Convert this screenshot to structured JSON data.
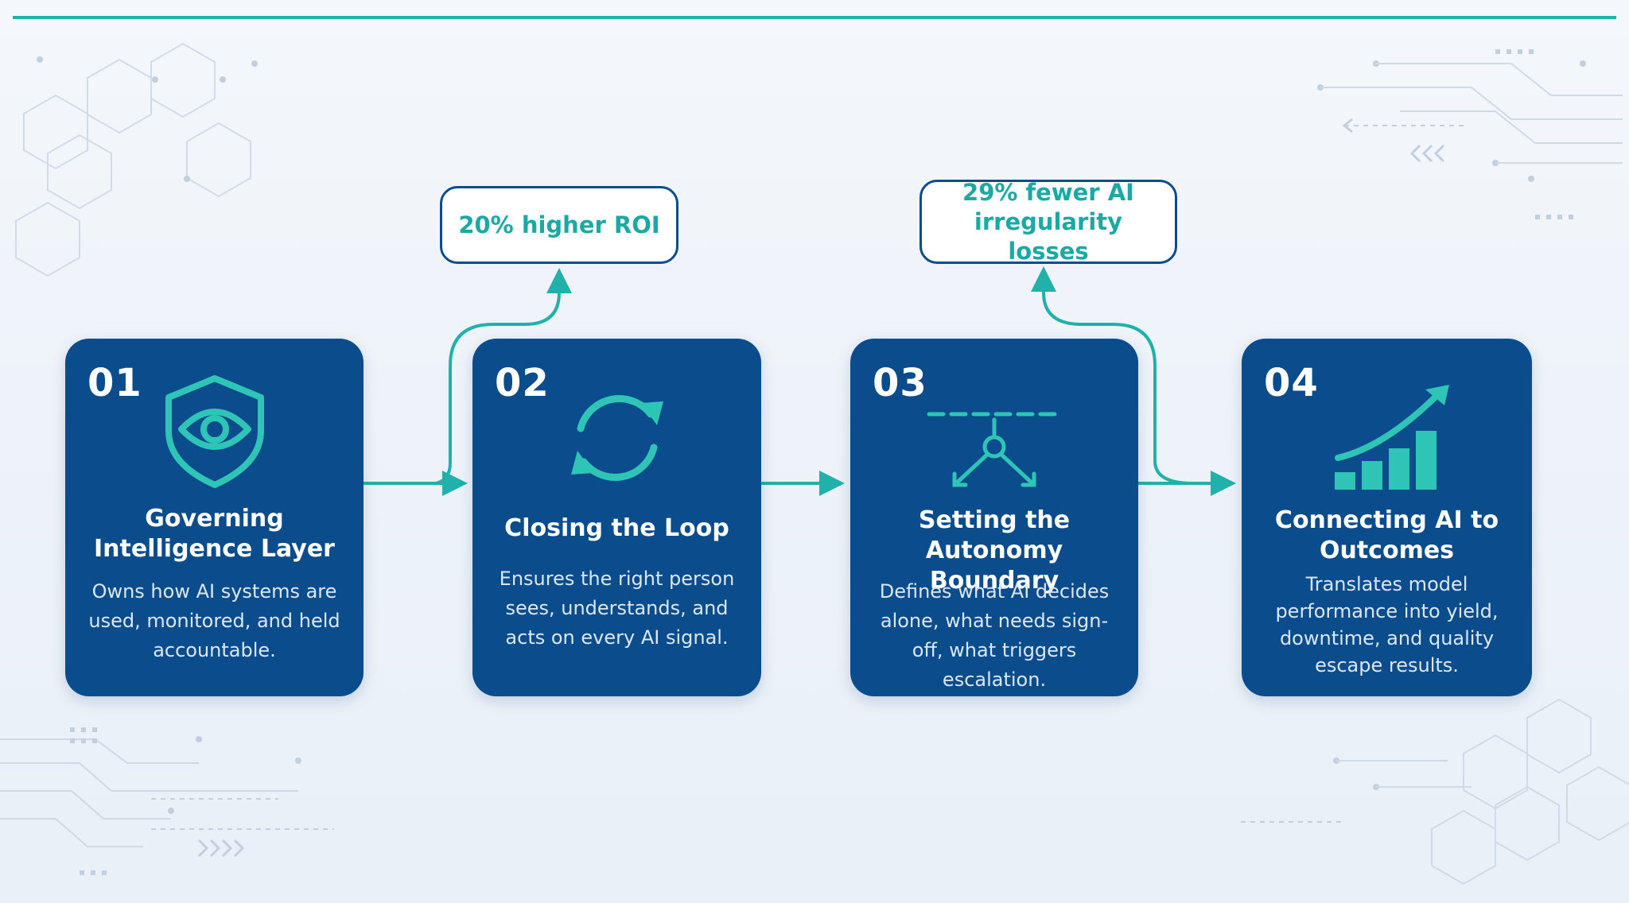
{
  "steps": [
    {
      "number": "01",
      "icon": "shield-eye-icon",
      "title": "Governing Intelligence Layer",
      "description": "Owns how AI systems are used, monitored, and held accountable."
    },
    {
      "number": "02",
      "icon": "refresh-loop-icon",
      "title": "Closing the Loop",
      "description": "Ensures the right person sees, understands, and acts on every AI signal."
    },
    {
      "number": "03",
      "icon": "boundary-branch-icon",
      "title": "Setting the Autonomy Boundary",
      "description": "Defines what AI decides alone, what needs sign-off, what triggers escalation."
    },
    {
      "number": "04",
      "icon": "growth-chart-icon",
      "title": "Connecting AI to Outcomes",
      "description": "Translates model performance into yield, downtime, and quality escape results."
    }
  ],
  "callouts": {
    "roi": "20% higher ROI",
    "losses": "29% fewer AI irregularity losses"
  },
  "colors": {
    "card": "#0b4c8c",
    "accent": "#20b2aa",
    "background": "#eef3f9"
  }
}
